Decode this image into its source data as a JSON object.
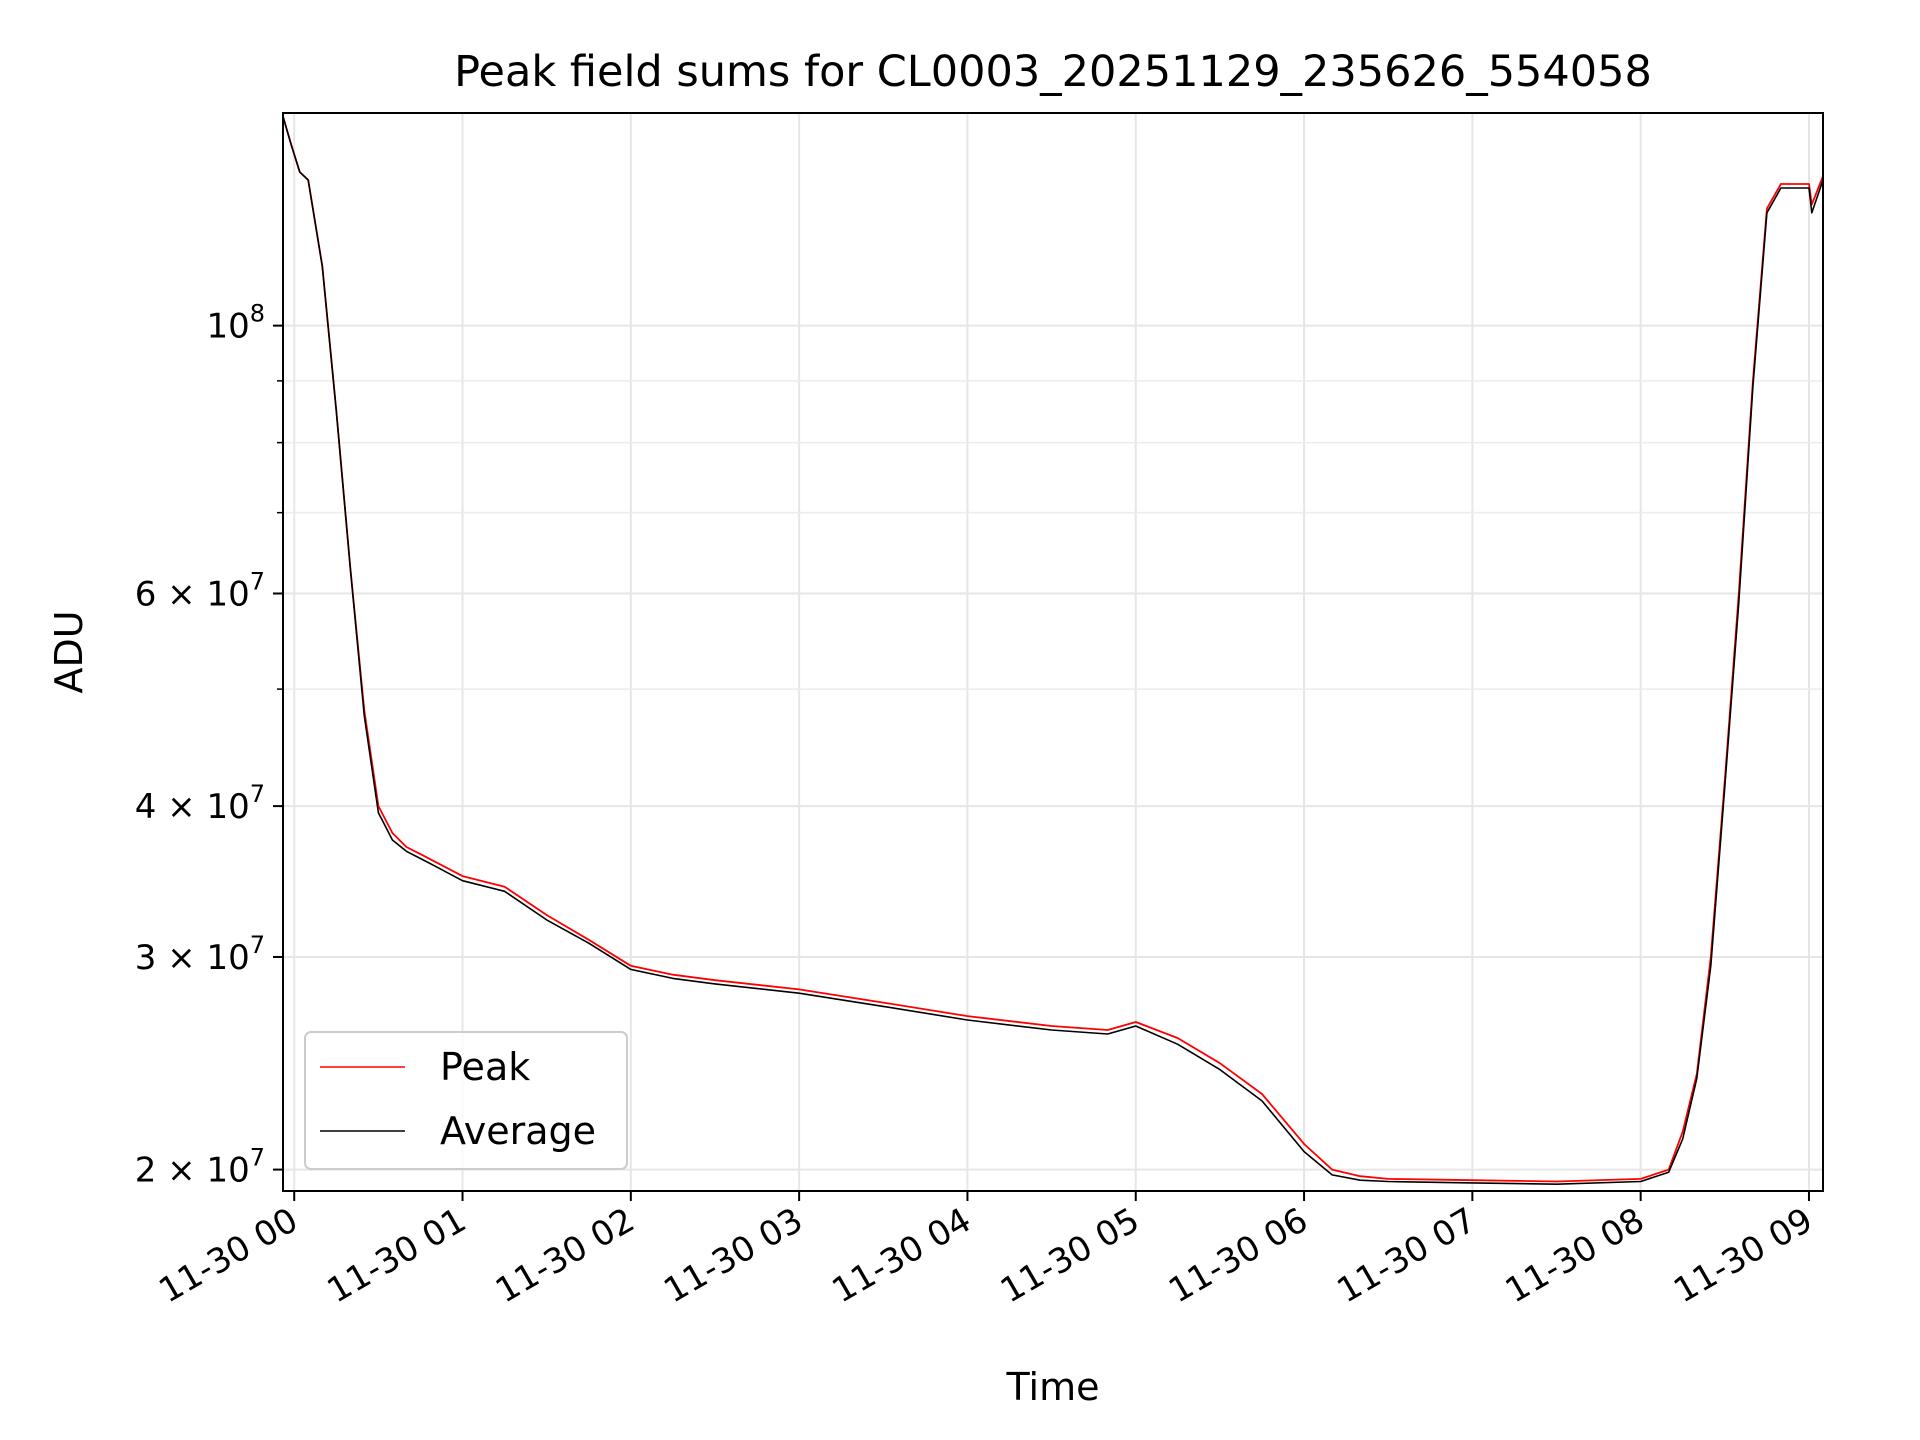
{
  "chart_data": {
    "type": "line",
    "title": "Peak field sums for CL0003_20251129_235626_554058",
    "xlabel": "Time",
    "ylabel": "ADU",
    "yscale": "log",
    "grid": true,
    "legend_position": "lower-left",
    "xlim": [
      "2025-11-29 23:56",
      "2025-11-30 09:05"
    ],
    "ylim": [
      19200000,
      150000000
    ],
    "x_ticks": [
      {
        "value": "2025-11-30 00:00",
        "label": "11-30 00"
      },
      {
        "value": "2025-11-30 01:00",
        "label": "11-30 01"
      },
      {
        "value": "2025-11-30 02:00",
        "label": "11-30 02"
      },
      {
        "value": "2025-11-30 03:00",
        "label": "11-30 03"
      },
      {
        "value": "2025-11-30 04:00",
        "label": "11-30 04"
      },
      {
        "value": "2025-11-30 05:00",
        "label": "11-30 05"
      },
      {
        "value": "2025-11-30 06:00",
        "label": "11-30 06"
      },
      {
        "value": "2025-11-30 07:00",
        "label": "11-30 07"
      },
      {
        "value": "2025-11-30 08:00",
        "label": "11-30 08"
      },
      {
        "value": "2025-11-30 09:00",
        "label": "11-30 09"
      }
    ],
    "y_major_ticks": [
      {
        "value": 20000000,
        "base": "2 × 10",
        "exp": "7"
      },
      {
        "value": 30000000,
        "base": "3 × 10",
        "exp": "7"
      },
      {
        "value": 40000000,
        "base": "4 × 10",
        "exp": "7"
      },
      {
        "value": 60000000,
        "base": "6 × 10",
        "exp": "7"
      },
      {
        "value": 100000000,
        "base": "10",
        "exp": "8"
      }
    ],
    "y_minor_ticks": [
      50000000,
      70000000,
      80000000,
      90000000
    ],
    "series": [
      {
        "name": "Peak",
        "color": "#ff0000",
        "x": [
          "2025-11-29 23:56",
          "2025-11-29 23:59",
          "2025-11-30 00:02",
          "2025-11-30 00:05",
          "2025-11-30 00:10",
          "2025-11-30 00:15",
          "2025-11-30 00:20",
          "2025-11-30 00:25",
          "2025-11-30 00:30",
          "2025-11-30 00:35",
          "2025-11-30 00:40",
          "2025-11-30 00:45",
          "2025-11-30 00:50",
          "2025-11-30 01:00",
          "2025-11-30 01:15",
          "2025-11-30 01:30",
          "2025-11-30 01:45",
          "2025-11-30 02:00",
          "2025-11-30 02:15",
          "2025-11-30 02:30",
          "2025-11-30 03:00",
          "2025-11-30 03:30",
          "2025-11-30 04:00",
          "2025-11-30 04:30",
          "2025-11-30 04:50",
          "2025-11-30 05:00",
          "2025-11-30 05:15",
          "2025-11-30 05:30",
          "2025-11-30 05:45",
          "2025-11-30 06:00",
          "2025-11-30 06:10",
          "2025-11-30 06:20",
          "2025-11-30 06:30",
          "2025-11-30 07:00",
          "2025-11-30 07:30",
          "2025-11-30 08:00",
          "2025-11-30 08:10",
          "2025-11-30 08:15",
          "2025-11-30 08:20",
          "2025-11-30 08:25",
          "2025-11-30 08:30",
          "2025-11-30 08:35",
          "2025-11-30 08:40",
          "2025-11-30 08:45",
          "2025-11-30 08:50",
          "2025-11-30 08:55",
          "2025-11-30 09:00",
          "2025-11-30 09:01",
          "2025-11-30 09:05"
        ],
        "y": [
          149000000,
          141000000,
          134000000,
          132000000,
          112000000,
          85000000,
          63000000,
          48000000,
          40000000,
          38000000,
          37000000,
          36500000,
          36000000,
          35000000,
          34300000,
          32500000,
          31000000,
          29500000,
          29000000,
          28700000,
          28200000,
          27500000,
          26800000,
          26300000,
          26100000,
          26500000,
          25700000,
          24500000,
          23100000,
          21000000,
          20000000,
          19750000,
          19650000,
          19600000,
          19550000,
          19650000,
          20000000,
          21500000,
          24000000,
          30000000,
          42000000,
          60000000,
          90000000,
          125000000,
          131000000,
          131000000,
          131000000,
          126000000,
          133000000
        ]
      },
      {
        "name": "Average",
        "color": "#000000",
        "x": [
          "2025-11-29 23:56",
          "2025-11-29 23:59",
          "2025-11-30 00:02",
          "2025-11-30 00:05",
          "2025-11-30 00:10",
          "2025-11-30 00:15",
          "2025-11-30 00:20",
          "2025-11-30 00:25",
          "2025-11-30 00:30",
          "2025-11-30 00:35",
          "2025-11-30 00:40",
          "2025-11-30 00:45",
          "2025-11-30 00:50",
          "2025-11-30 01:00",
          "2025-11-30 01:15",
          "2025-11-30 01:30",
          "2025-11-30 01:45",
          "2025-11-30 02:00",
          "2025-11-30 02:15",
          "2025-11-30 02:30",
          "2025-11-30 03:00",
          "2025-11-30 03:30",
          "2025-11-30 04:00",
          "2025-11-30 04:30",
          "2025-11-30 04:50",
          "2025-11-30 05:00",
          "2025-11-30 05:15",
          "2025-11-30 05:30",
          "2025-11-30 05:45",
          "2025-11-30 06:00",
          "2025-11-30 06:10",
          "2025-11-30 06:20",
          "2025-11-30 06:30",
          "2025-11-30 07:00",
          "2025-11-30 07:30",
          "2025-11-30 08:00",
          "2025-11-30 08:10",
          "2025-11-30 08:15",
          "2025-11-30 08:20",
          "2025-11-30 08:25",
          "2025-11-30 08:30",
          "2025-11-30 08:35",
          "2025-11-30 08:40",
          "2025-11-30 08:45",
          "2025-11-30 08:50",
          "2025-11-30 08:55",
          "2025-11-30 09:00",
          "2025-11-30 09:01",
          "2025-11-30 09:05"
        ],
        "y": [
          149000000,
          141000000,
          134000000,
          132000000,
          112000000,
          85000000,
          63000000,
          47500000,
          39500000,
          37500000,
          36700000,
          36200000,
          35700000,
          34700000,
          34000000,
          32200000,
          30800000,
          29300000,
          28800000,
          28500000,
          28000000,
          27300000,
          26600000,
          26100000,
          25900000,
          26300000,
          25400000,
          24200000,
          22800000,
          20700000,
          19800000,
          19600000,
          19550000,
          19500000,
          19450000,
          19550000,
          19900000,
          21200000,
          23800000,
          29500000,
          41500000,
          59000000,
          89000000,
          124000000,
          130000000,
          130000000,
          130000000,
          124000000,
          132000000
        ]
      }
    ]
  }
}
